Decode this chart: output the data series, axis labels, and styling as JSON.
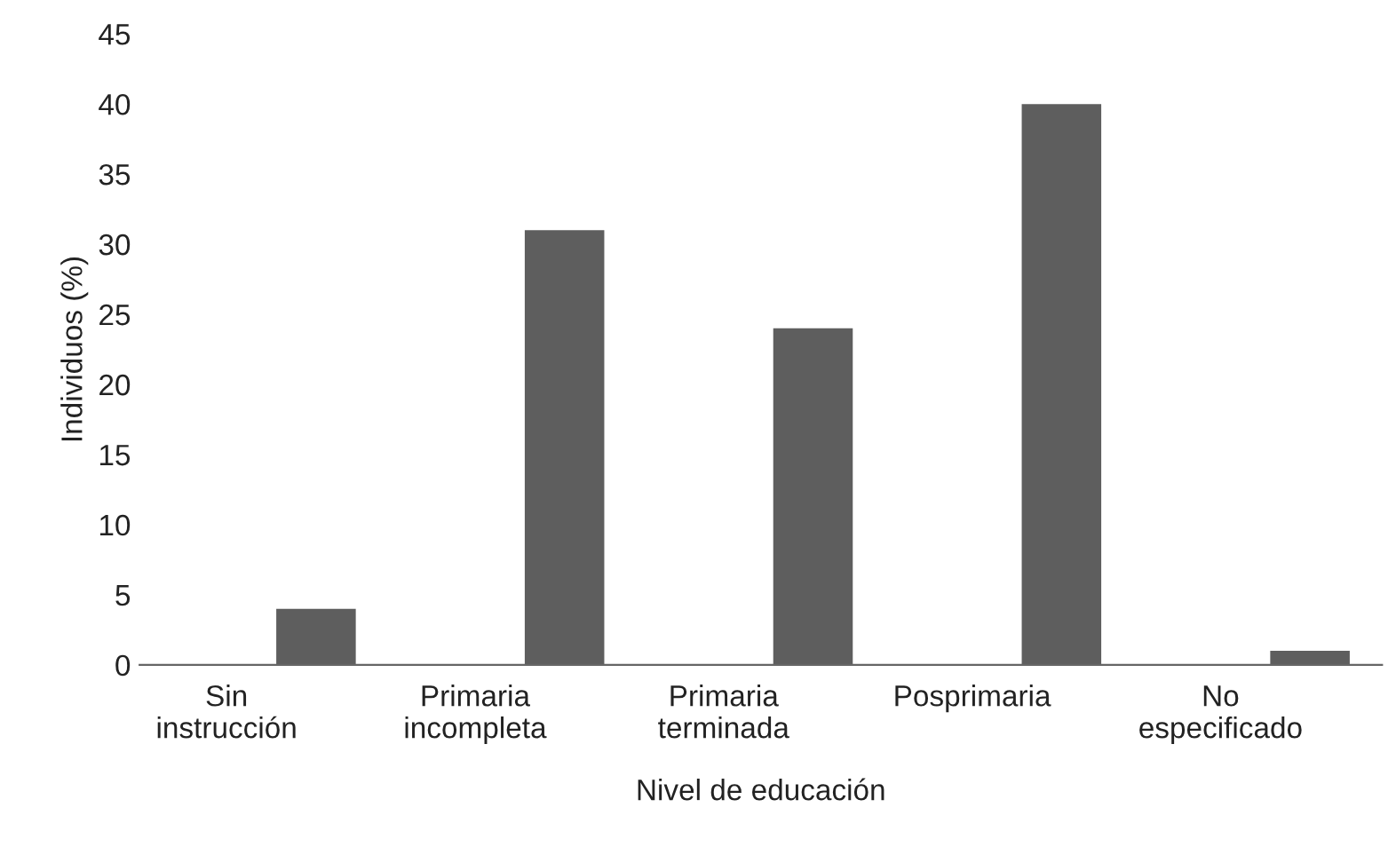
{
  "chart_data": {
    "type": "bar",
    "categories": [
      "Sin\ninstrucción",
      "Primaria\nincompleta",
      "Primaria\nterminada",
      "Posprimaria",
      "No\nespecificado"
    ],
    "values": [
      4,
      31,
      24,
      40,
      1
    ],
    "color": "#5e5e5e",
    "xlabel": "Nivel de educación",
    "ylabel": "Individuos (%)",
    "ylim": [
      0,
      45
    ],
    "yticks": [
      0,
      5,
      10,
      15,
      20,
      25,
      30,
      35,
      40,
      45
    ],
    "grid": false,
    "legend": false
  }
}
